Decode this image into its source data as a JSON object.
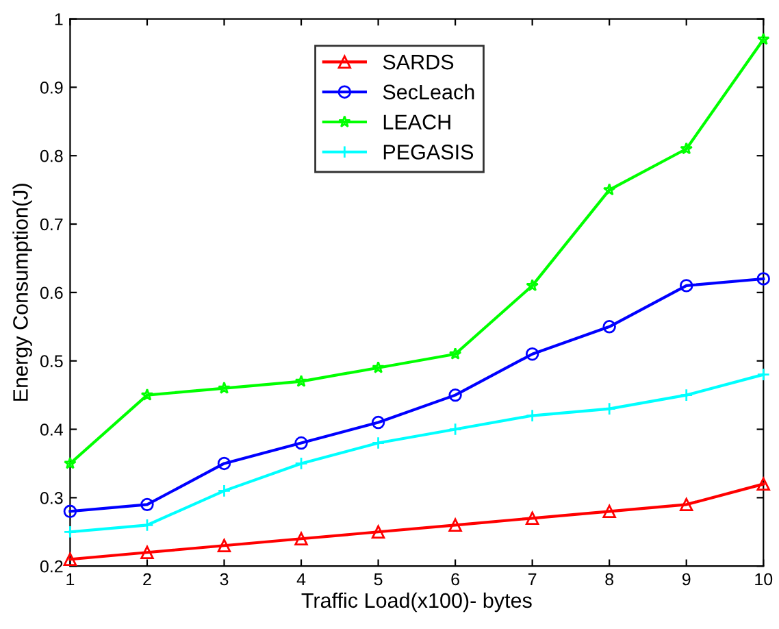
{
  "chart_data": {
    "type": "line",
    "xlabel": "Traffic Load(x100)- bytes",
    "ylabel": "Energy Consumption(J)",
    "x": [
      1,
      2,
      3,
      4,
      5,
      6,
      7,
      8,
      9,
      10
    ],
    "series": [
      {
        "name": "SARDS",
        "color": "#ff0000",
        "marker": "triangle",
        "values": [
          0.21,
          0.22,
          0.23,
          0.24,
          0.25,
          0.26,
          0.27,
          0.28,
          0.29,
          0.32
        ]
      },
      {
        "name": "SecLeach",
        "color": "#0000ff",
        "marker": "circle",
        "values": [
          0.28,
          0.29,
          0.35,
          0.38,
          0.41,
          0.45,
          0.51,
          0.55,
          0.61,
          0.62
        ]
      },
      {
        "name": "LEACH",
        "color": "#00ff00",
        "marker": "star",
        "values": [
          0.35,
          0.45,
          0.46,
          0.47,
          0.49,
          0.51,
          0.61,
          0.75,
          0.81,
          0.97
        ]
      },
      {
        "name": "PEGASIS",
        "color": "#00ffff",
        "marker": "cross",
        "values": [
          0.25,
          0.26,
          0.31,
          0.35,
          0.38,
          0.4,
          0.42,
          0.43,
          0.45,
          0.48
        ]
      }
    ],
    "xlim": [
      1,
      10
    ],
    "xticks": [
      1,
      2,
      3,
      4,
      5,
      6,
      7,
      8,
      9,
      10
    ],
    "ylim": [
      0.2,
      1
    ],
    "yticks": [
      0.2,
      0.3,
      0.4,
      0.5,
      0.6,
      0.7,
      0.8,
      0.9,
      1
    ],
    "grid": false,
    "legend": "top center",
    "line_style": "solid"
  }
}
